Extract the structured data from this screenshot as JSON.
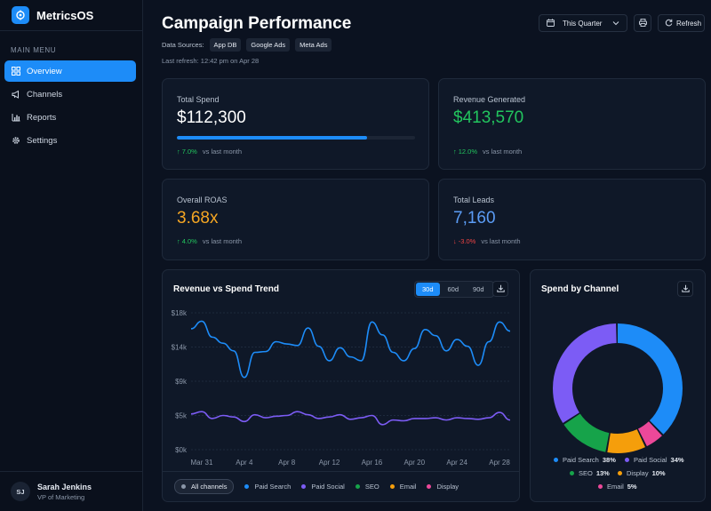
{
  "brand": {
    "name": "MetricsOS"
  },
  "sidebar": {
    "menu_title": "MAIN MENU",
    "items": [
      {
        "label": "Overview",
        "icon": "grid-icon",
        "active": true
      },
      {
        "label": "Channels",
        "icon": "megaphone-icon"
      },
      {
        "label": "Reports",
        "icon": "bar-chart-icon"
      },
      {
        "label": "Settings",
        "icon": "gear-icon"
      }
    ]
  },
  "user": {
    "initials": "SJ",
    "name": "Sarah Jenkins",
    "role": "VP of Marketing"
  },
  "header": {
    "title": "Campaign Performance",
    "sources_label": "Data Sources:",
    "sources": [
      "App DB",
      "Google Ads",
      "Meta Ads"
    ],
    "last_refresh": "Last refresh: 12:42 pm on Apr 28",
    "period": "This Quarter",
    "refresh_label": "Refresh"
  },
  "kpis": {
    "total_spend": {
      "label": "Total Spend",
      "value": "$112,300",
      "change": "7.0%",
      "direction": "up",
      "vs": "vs last month",
      "progress": 0.8
    },
    "revenue": {
      "label": "Revenue Generated",
      "value": "$413,570",
      "change": "12.0%",
      "direction": "up",
      "vs": "vs last month"
    },
    "roas": {
      "label": "Overall ROAS",
      "value": "3.68x",
      "change": "4.0%",
      "direction": "up",
      "vs": "vs last month"
    },
    "leads": {
      "label": "Total Leads",
      "value": "7,160",
      "change": "-3.0%",
      "direction": "down",
      "vs": "vs last month"
    }
  },
  "colors": {
    "accent": "#1d8cf8",
    "positive": "#22c55e",
    "negative": "#ef4444",
    "roas": "#f5a623",
    "leads": "#5b9cf5"
  },
  "trend": {
    "title": "Revenue vs Spend Trend",
    "ranges": [
      "30d",
      "60d",
      "90d"
    ],
    "active_range": "30d",
    "legend_all": "All channels",
    "legend": [
      {
        "name": "Paid Search",
        "color": "#1d8cf8"
      },
      {
        "name": "Paid Social",
        "color": "#7c5cf5"
      },
      {
        "name": "SEO",
        "color": "#16a34a"
      },
      {
        "name": "Email",
        "color": "#f59e0b"
      },
      {
        "name": "Display",
        "color": "#ec4899"
      }
    ]
  },
  "donut": {
    "title": "Spend by Channel",
    "legend": [
      {
        "name": "Paid Search",
        "pct": "38%"
      },
      {
        "name": "Paid Social",
        "pct": "34%"
      },
      {
        "name": "SEO",
        "pct": "13%"
      },
      {
        "name": "Display",
        "pct": "10%"
      },
      {
        "name": "Email",
        "pct": "5%"
      }
    ]
  },
  "chart_data": [
    {
      "type": "line",
      "title": "Revenue vs Spend Trend",
      "x_ticks": [
        "Mar 31",
        "Apr 4",
        "Apr 8",
        "Apr 12",
        "Apr 16",
        "Apr 20",
        "Apr 24",
        "Apr 28"
      ],
      "x_start": "Mar 30",
      "x_end": "Apr 29",
      "ylim": [
        0,
        18000
      ],
      "y_ticks": [
        "$0k",
        "$5k",
        "$9k",
        "$14k",
        "$18k"
      ],
      "grid": true,
      "series": [
        {
          "color": "#1d8cf8",
          "x": [
            "Mar 30",
            "Mar 31",
            "Apr 1",
            "Apr 2",
            "Apr 3",
            "Apr 4",
            "Apr 5",
            "Apr 6",
            "Apr 7",
            "Apr 8",
            "Apr 9",
            "Apr 10",
            "Apr 11",
            "Apr 12",
            "Apr 13",
            "Apr 14",
            "Apr 15",
            "Apr 16",
            "Apr 17",
            "Apr 18",
            "Apr 19",
            "Apr 20",
            "Apr 21",
            "Apr 22",
            "Apr 23",
            "Apr 24",
            "Apr 25",
            "Apr 26",
            "Apr 27",
            "Apr 28",
            "Apr 29"
          ],
          "values": [
            15900,
            16900,
            14800,
            14000,
            13000,
            9500,
            12800,
            12900,
            14200,
            13900,
            13700,
            16000,
            13600,
            11700,
            13400,
            12200,
            11700,
            16800,
            15100,
            12800,
            11700,
            13300,
            15800,
            15000,
            13000,
            14500,
            13600,
            11100,
            14200,
            16800,
            15600
          ]
        },
        {
          "color": "#7c5cf5",
          "x": [
            "Mar 30",
            "Mar 31",
            "Apr 1",
            "Apr 2",
            "Apr 3",
            "Apr 4",
            "Apr 5",
            "Apr 6",
            "Apr 7",
            "Apr 8",
            "Apr 9",
            "Apr 10",
            "Apr 11",
            "Apr 12",
            "Apr 13",
            "Apr 14",
            "Apr 15",
            "Apr 16",
            "Apr 17",
            "Apr 18",
            "Apr 19",
            "Apr 20",
            "Apr 21",
            "Apr 22",
            "Apr 23",
            "Apr 24",
            "Apr 25",
            "Apr 26",
            "Apr 27",
            "Apr 28",
            "Apr 29"
          ],
          "values": [
            4700,
            5000,
            4100,
            4500,
            4300,
            3700,
            4600,
            4200,
            4400,
            4500,
            5000,
            4600,
            4100,
            4300,
            4600,
            4000,
            4200,
            4500,
            3300,
            3900,
            3800,
            4100,
            4100,
            4200,
            3900,
            4200,
            4100,
            4000,
            4200,
            4900,
            3900
          ]
        }
      ]
    },
    {
      "type": "pie",
      "title": "Spend by Channel",
      "series": [
        {
          "labels": [
            "Paid Search",
            "Email",
            "Display",
            "SEO",
            "Paid Social"
          ],
          "values": [
            38,
            5,
            10,
            13,
            34
          ],
          "colors": [
            "#1d8cf8",
            "#ec4899",
            "#f59e0b",
            "#16a34a",
            "#7c5cf5"
          ]
        }
      ]
    }
  ]
}
